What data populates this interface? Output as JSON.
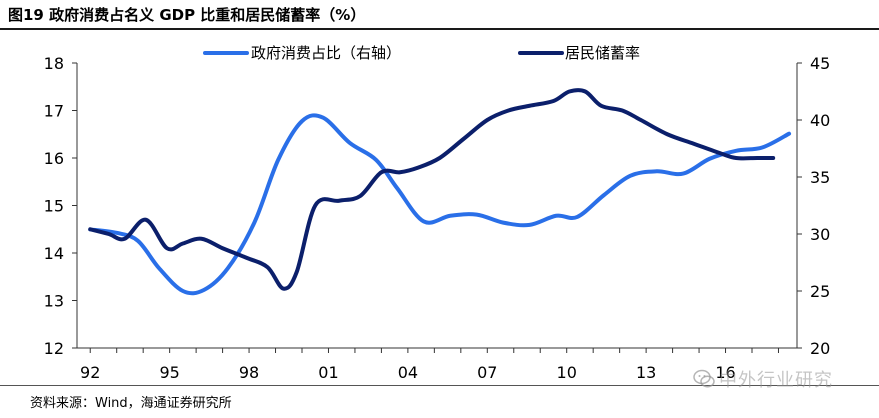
{
  "figure": {
    "title": "图19 政府消费占名义 GDP 比重和居民储蓄率（%）",
    "source": "资料来源：Wind，海通证券研究所",
    "watermark": "中外行业研究"
  },
  "chart_data": {
    "type": "line",
    "title": "",
    "xlabel": "",
    "ylabel": "",
    "x_tick_labels": [
      "92",
      "95",
      "98",
      "01",
      "04",
      "07",
      "10",
      "13",
      "16"
    ],
    "y_left": {
      "range": [
        12,
        18
      ],
      "ticks": [
        12,
        13,
        14,
        15,
        16,
        17,
        18
      ]
    },
    "y_right": {
      "range": [
        20,
        45
      ],
      "ticks": [
        20,
        25,
        30,
        35,
        40,
        45
      ]
    },
    "grid": false,
    "legend_position": "top",
    "series": [
      {
        "name": "政府消费占比（右轴）",
        "axis": "right",
        "color": "#2a6fe8",
        "x": [
          1992,
          1993,
          1993.8,
          1994.6,
          1995.5,
          1996.3,
          1997.2,
          1998.2,
          1999.1,
          2000,
          2000.8,
          2001.8,
          2002.8,
          2003.6,
          2004.6,
          2005.6,
          2006.6,
          2007.6,
          2008.6,
          2009.6,
          2010.4,
          2011.4,
          2012.4,
          2013.4,
          2014.4,
          2015.4,
          2016.4,
          2017.4,
          2018.4
        ],
        "y": [
          30.4,
          30.1,
          29.4,
          27.0,
          25.0,
          25.1,
          27.0,
          31.0,
          36.5,
          39.9,
          40.2,
          38.0,
          36.5,
          34.0,
          31.1,
          31.6,
          31.7,
          31.0,
          30.8,
          31.6,
          31.5,
          33.4,
          35.1,
          35.5,
          35.3,
          36.6,
          37.3,
          37.6,
          38.8
        ]
      },
      {
        "name": "居民储蓄率",
        "axis": "left",
        "color": "#0b1f6b",
        "x": [
          1992,
          1992.7,
          1993.3,
          1994.1,
          1994.9,
          1995.5,
          1996.2,
          1997,
          1997.9,
          1998.7,
          1999.3,
          1999.8,
          2000.5,
          2001.4,
          2002.2,
          2003,
          2003.7,
          2004.4,
          2005.2,
          2006.1,
          2007,
          2007.8,
          2008.6,
          2009.5,
          2010.1,
          2010.7,
          2011.3,
          2012.1,
          2012.8,
          2013.8,
          2014.8,
          2015.8,
          2016.4,
          2017.2,
          2017.8
        ],
        "y": [
          14.5,
          14.4,
          14.3,
          14.7,
          14.1,
          14.2,
          14.3,
          14.1,
          13.9,
          13.7,
          13.25,
          13.6,
          15.0,
          15.1,
          15.2,
          15.7,
          15.7,
          15.8,
          16.0,
          16.4,
          16.8,
          17.0,
          17.1,
          17.2,
          17.4,
          17.4,
          17.1,
          17.0,
          16.8,
          16.5,
          16.3,
          16.1,
          16.0,
          16.0,
          16.0
        ]
      }
    ]
  }
}
